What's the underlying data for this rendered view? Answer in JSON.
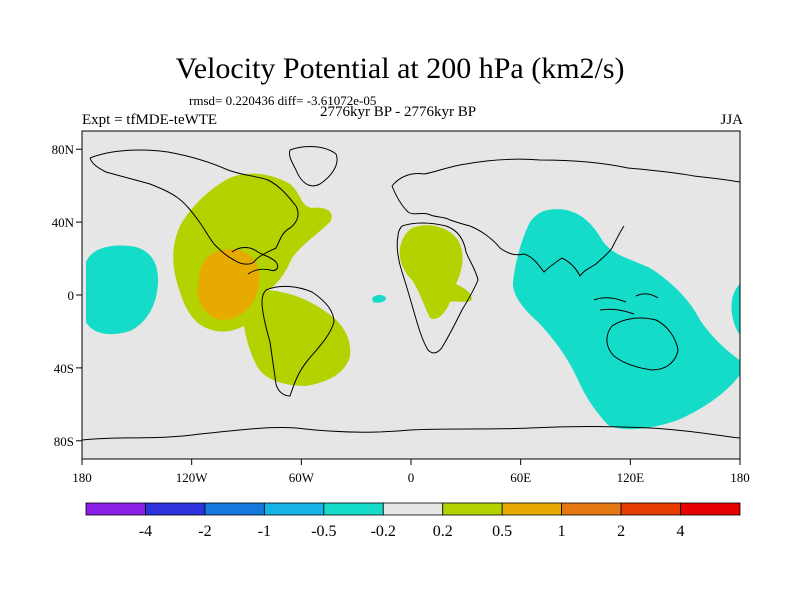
{
  "title": "Velocity Potential at 200 hPa (km2/s)",
  "stats": "rmsd= 0.220436 diff= -3.61072e-05",
  "experiment": "Expt = tfMDE-teWTE",
  "period": "2776kyr BP - 2776kyr BP",
  "season": "JJA",
  "map": {
    "lon_range": [
      -180,
      180
    ],
    "lat_range": [
      -90,
      90
    ],
    "lat_ticks": [
      {
        "label": "80N",
        "lat": 80
      },
      {
        "label": "40N",
        "lat": 40
      },
      {
        "label": "0",
        "lat": 0
      },
      {
        "label": "40S",
        "lat": -40
      },
      {
        "label": "80S",
        "lat": -80
      }
    ],
    "lon_ticks": [
      {
        "label": "180",
        "lon": -180
      },
      {
        "label": "120W",
        "lon": -120
      },
      {
        "label": "60W",
        "lon": -60
      },
      {
        "label": "0",
        "lon": 0
      },
      {
        "label": "60E",
        "lon": 60
      },
      {
        "label": "120E",
        "lon": 120
      },
      {
        "label": "180",
        "lon": 180
      }
    ],
    "background_color": "#e6e6e6"
  },
  "colorbar": {
    "labels": [
      "-4",
      "-2",
      "-1",
      "-0.5",
      "-0.2",
      "0.2",
      "0.5",
      "1",
      "2",
      "4"
    ],
    "colors": [
      "#8c1ee6",
      "#2d32dc",
      "#1478dc",
      "#14b4e6",
      "#14dcc8",
      "#e6e6e6",
      "#b4d200",
      "#e6aa00",
      "#e67814",
      "#e63c00",
      "#e60000"
    ]
  }
}
